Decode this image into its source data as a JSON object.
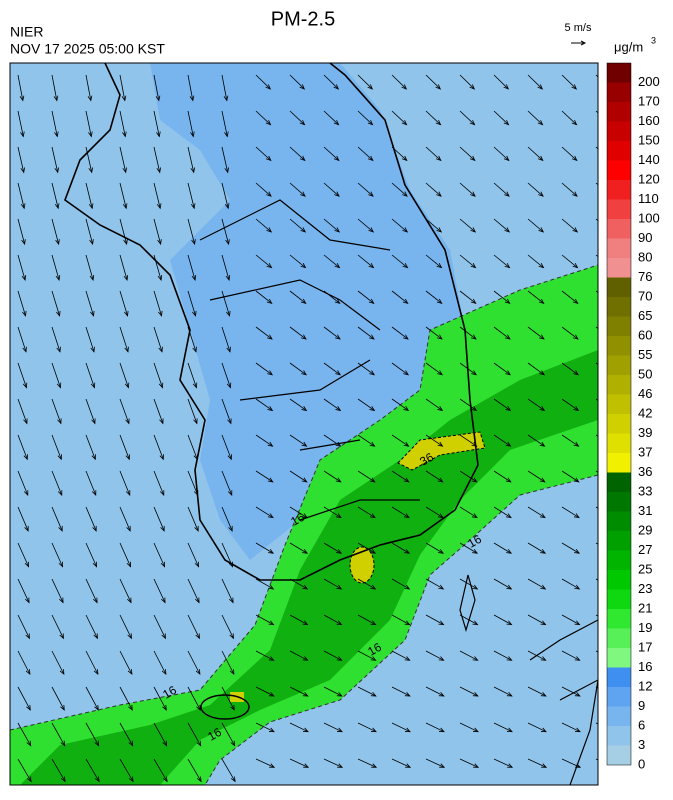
{
  "header": {
    "title": "PM-2.5",
    "agency": "NIER",
    "timestamp": "NOV 17 2025 05:00 KST",
    "wind_scale": "5 m/s"
  },
  "colorbar": {
    "unit": "μg/m",
    "unit_sup": "3",
    "levels": [
      0,
      3,
      6,
      9,
      12,
      16,
      17,
      19,
      21,
      23,
      25,
      27,
      29,
      31,
      33,
      36,
      37,
      39,
      42,
      46,
      50,
      55,
      60,
      65,
      70,
      76,
      80,
      90,
      100,
      110,
      120,
      140,
      150,
      160,
      170,
      200
    ],
    "colors": [
      "#a6cfe6",
      "#90c4ea",
      "#78b4ee",
      "#5ea4f0",
      "#3f8ff0",
      "#80f880",
      "#58f058",
      "#30e830",
      "#10d810",
      "#00c800",
      "#00b400",
      "#00a000",
      "#008c00",
      "#007800",
      "#006400",
      "#f0f000",
      "#e0e000",
      "#d0d000",
      "#c0c000",
      "#b0b000",
      "#a0a000",
      "#909000",
      "#808000",
      "#707000",
      "#606000",
      "#f09090",
      "#f08080",
      "#f06060",
      "#f04040",
      "#f02020",
      "#ff0000",
      "#e00000",
      "#c80000",
      "#b00000",
      "#980000",
      "#700000"
    ]
  },
  "contour_labels": [
    "16",
    "16",
    "16",
    "16",
    "16",
    "36"
  ]
}
